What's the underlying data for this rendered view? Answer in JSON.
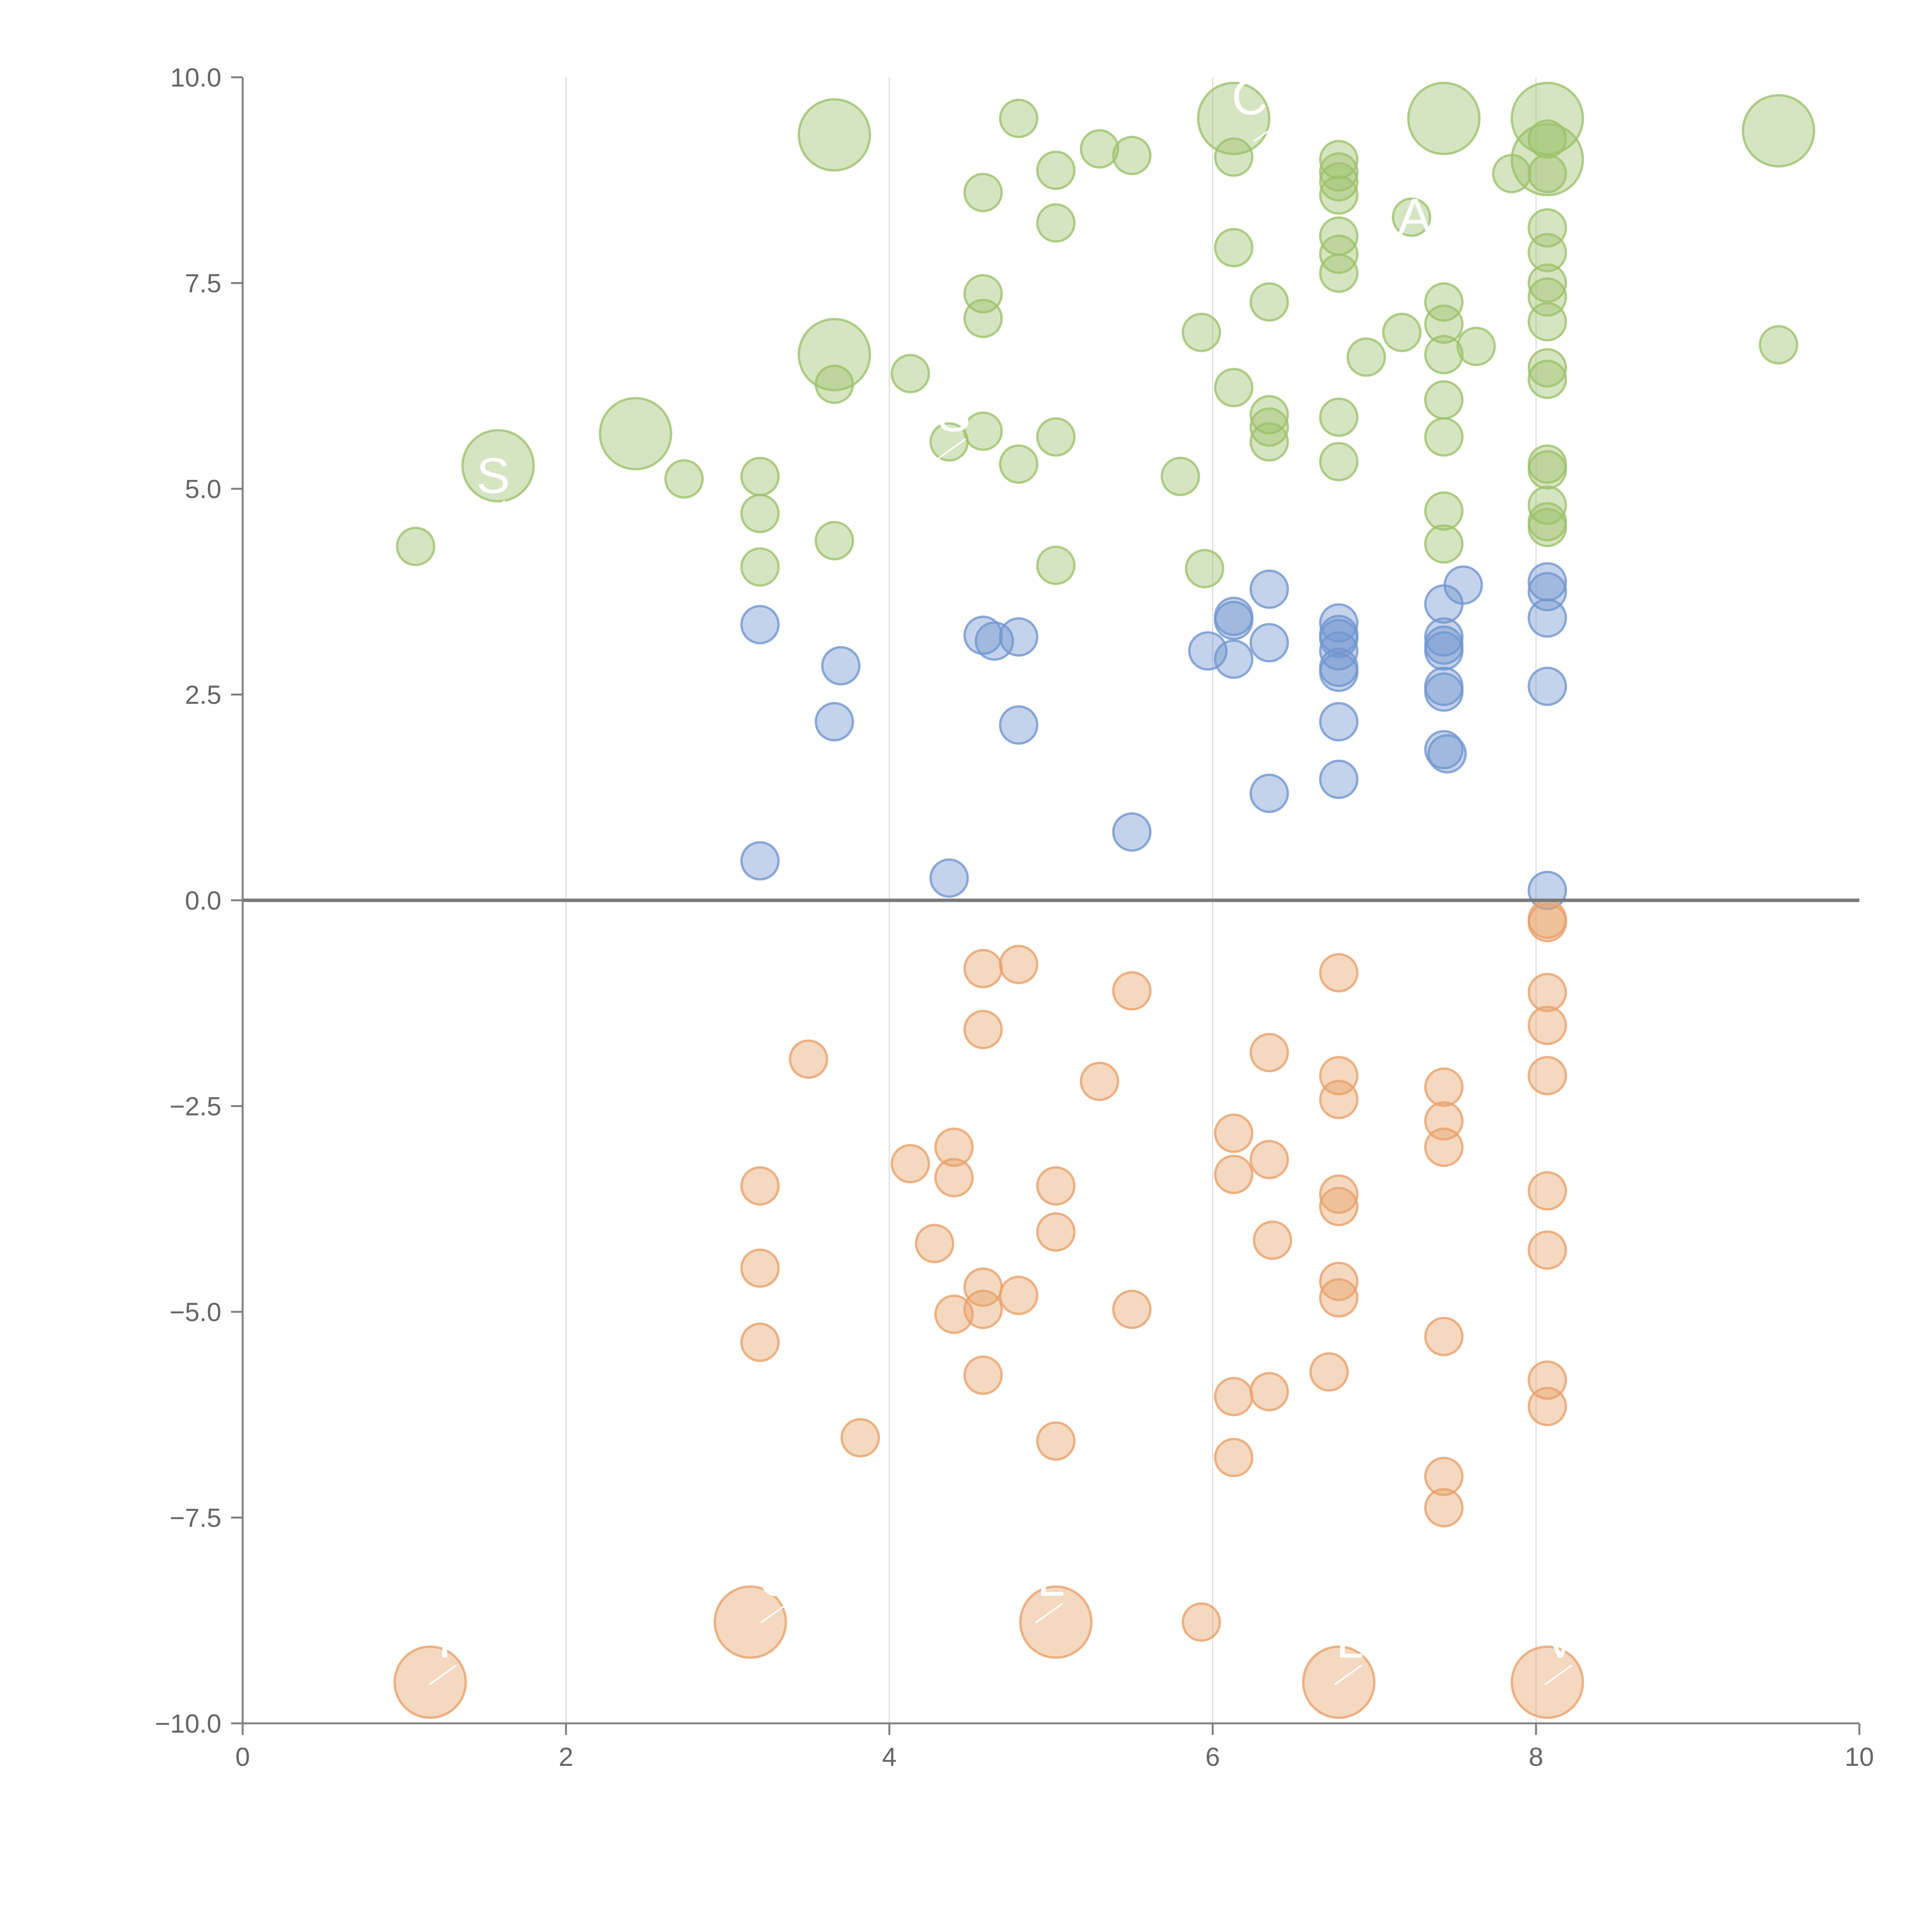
{
  "chart_data": {
    "type": "scatter",
    "title": "",
    "xlabel": "",
    "ylabel": "",
    "xlim": [
      0,
      10
    ],
    "ylim": [
      -10,
      10
    ],
    "x_ticks": [
      0,
      2,
      4,
      6,
      8,
      10
    ],
    "y_ticks": [
      -10,
      -7.5,
      -5,
      -2.5,
      0,
      2.5,
      5,
      7.5,
      10
    ],
    "x_tick_labels": [
      "0",
      "2",
      "4",
      "6",
      "8",
      "10"
    ],
    "y_tick_labels": [
      "−10.0",
      "−7.5",
      "−5.0",
      "−2.5",
      "0.0",
      "2.5",
      "5.0",
      "7.5",
      "10.0"
    ],
    "grid": "vertical lines at x ticks",
    "reference_line": {
      "y": 0
    },
    "colors": {
      "green": "#9dc26b",
      "blue": "#7296cf",
      "orange": "#e8a16a"
    },
    "series": [
      {
        "name": "green",
        "color": "#9dc26b",
        "points": [
          [
            1.07,
            4.3
          ],
          [
            2.73,
            5.12
          ],
          [
            3.2,
            5.15
          ],
          [
            3.2,
            4.7
          ],
          [
            3.2,
            4.05
          ],
          [
            3.66,
            4.37
          ],
          [
            3.66,
            6.27
          ],
          [
            4.13,
            6.4
          ],
          [
            4.37,
            5.57
          ],
          [
            4.58,
            7.37
          ],
          [
            4.58,
            7.07
          ],
          [
            4.58,
            8.6
          ],
          [
            4.58,
            5.7
          ],
          [
            4.8,
            5.3
          ],
          [
            4.8,
            9.5
          ],
          [
            5.03,
            8.87
          ],
          [
            5.03,
            8.23
          ],
          [
            5.03,
            5.63
          ],
          [
            5.03,
            4.07
          ],
          [
            5.3,
            9.13
          ],
          [
            5.5,
            9.05
          ],
          [
            5.8,
            5.15
          ],
          [
            5.93,
            6.9
          ],
          [
            5.95,
            4.03
          ],
          [
            6.13,
            9.03
          ],
          [
            6.13,
            7.93
          ],
          [
            6.13,
            6.23
          ],
          [
            6.35,
            7.27
          ],
          [
            6.35,
            5.9
          ],
          [
            6.35,
            5.75
          ],
          [
            6.35,
            5.57
          ],
          [
            6.78,
            9.0
          ],
          [
            6.78,
            8.85
          ],
          [
            6.78,
            8.73
          ],
          [
            6.78,
            8.57
          ],
          [
            6.78,
            8.07
          ],
          [
            6.78,
            7.85
          ],
          [
            6.78,
            7.62
          ],
          [
            6.78,
            5.87
          ],
          [
            6.78,
            5.33
          ],
          [
            6.95,
            6.6
          ],
          [
            7.17,
            6.9
          ],
          [
            7.23,
            8.3
          ],
          [
            7.43,
            7.27
          ],
          [
            7.43,
            7.0
          ],
          [
            7.43,
            6.63
          ],
          [
            7.43,
            6.08
          ],
          [
            7.43,
            5.63
          ],
          [
            7.43,
            4.73
          ],
          [
            7.43,
            4.33
          ],
          [
            7.63,
            6.73
          ],
          [
            7.85,
            8.83
          ],
          [
            8.07,
            9.25
          ],
          [
            8.07,
            8.83
          ],
          [
            8.07,
            8.17
          ],
          [
            8.07,
            7.87
          ],
          [
            8.07,
            7.5
          ],
          [
            8.07,
            7.33
          ],
          [
            8.07,
            7.03
          ],
          [
            8.07,
            6.47
          ],
          [
            8.07,
            6.33
          ],
          [
            8.07,
            5.3
          ],
          [
            8.07,
            5.23
          ],
          [
            8.07,
            4.8
          ],
          [
            8.07,
            4.6
          ],
          [
            8.07,
            4.53
          ],
          [
            9.5,
            6.75
          ]
        ]
      },
      {
        "name": "green-large",
        "color": "#9dc26b",
        "points": [
          [
            1.58,
            5.28
          ],
          [
            2.43,
            5.67
          ],
          [
            3.66,
            9.3
          ],
          [
            3.66,
            6.63
          ],
          [
            6.13,
            9.5
          ],
          [
            7.43,
            9.5
          ],
          [
            8.07,
            9.5
          ],
          [
            8.07,
            9.0
          ],
          [
            9.5,
            9.35
          ]
        ]
      },
      {
        "name": "blue",
        "color": "#7296cf",
        "points": [
          [
            3.2,
            3.35
          ],
          [
            3.2,
            0.48
          ],
          [
            3.66,
            2.17
          ],
          [
            3.7,
            2.85
          ],
          [
            4.37,
            0.27
          ],
          [
            4.58,
            3.22
          ],
          [
            4.65,
            3.15
          ],
          [
            4.8,
            3.2
          ],
          [
            4.8,
            2.13
          ],
          [
            5.5,
            0.83
          ],
          [
            5.97,
            3.03
          ],
          [
            6.13,
            3.45
          ],
          [
            6.13,
            3.4
          ],
          [
            6.13,
            2.93
          ],
          [
            6.35,
            3.78
          ],
          [
            6.35,
            3.13
          ],
          [
            6.35,
            1.3
          ],
          [
            6.78,
            3.37
          ],
          [
            6.78,
            3.23
          ],
          [
            6.78,
            3.18
          ],
          [
            6.78,
            3.03
          ],
          [
            6.78,
            2.83
          ],
          [
            6.78,
            2.77
          ],
          [
            6.78,
            2.17
          ],
          [
            6.78,
            1.47
          ],
          [
            7.43,
            3.6
          ],
          [
            7.43,
            3.2
          ],
          [
            7.43,
            3.1
          ],
          [
            7.43,
            3.03
          ],
          [
            7.43,
            2.6
          ],
          [
            7.43,
            2.53
          ],
          [
            7.43,
            1.83
          ],
          [
            7.45,
            1.78
          ],
          [
            7.55,
            3.83
          ],
          [
            8.07,
            3.87
          ],
          [
            8.07,
            3.75
          ],
          [
            8.07,
            3.43
          ],
          [
            8.07,
            2.6
          ],
          [
            8.07,
            0.12
          ]
        ]
      },
      {
        "name": "orange",
        "color": "#e8a16a",
        "points": [
          [
            3.2,
            -3.47
          ],
          [
            3.2,
            -4.47
          ],
          [
            3.2,
            -5.37
          ],
          [
            3.5,
            -1.93
          ],
          [
            3.82,
            -6.53
          ],
          [
            4.13,
            -3.2
          ],
          [
            4.28,
            -4.17
          ],
          [
            4.4,
            -3.0
          ],
          [
            4.4,
            -3.37
          ],
          [
            4.4,
            -5.03
          ],
          [
            4.58,
            -0.83
          ],
          [
            4.58,
            -1.57
          ],
          [
            4.58,
            -4.7
          ],
          [
            4.58,
            -4.97
          ],
          [
            4.58,
            -5.77
          ],
          [
            4.8,
            -0.78
          ],
          [
            4.8,
            -4.8
          ],
          [
            5.03,
            -3.47
          ],
          [
            5.03,
            -4.03
          ],
          [
            5.03,
            -6.57
          ],
          [
            5.3,
            -2.2
          ],
          [
            5.5,
            -1.1
          ],
          [
            5.5,
            -4.97
          ],
          [
            5.93,
            -8.77
          ],
          [
            6.13,
            -2.83
          ],
          [
            6.13,
            -3.33
          ],
          [
            6.13,
            -6.03
          ],
          [
            6.13,
            -6.77
          ],
          [
            6.35,
            -1.85
          ],
          [
            6.35,
            -3.15
          ],
          [
            6.37,
            -4.13
          ],
          [
            6.35,
            -5.97
          ],
          [
            6.72,
            -5.73
          ],
          [
            6.78,
            -0.88
          ],
          [
            6.78,
            -2.13
          ],
          [
            6.78,
            -2.42
          ],
          [
            6.78,
            -3.57
          ],
          [
            6.78,
            -3.72
          ],
          [
            6.78,
            -4.63
          ],
          [
            6.78,
            -4.83
          ],
          [
            7.43,
            -2.27
          ],
          [
            7.43,
            -2.68
          ],
          [
            7.43,
            -3.0
          ],
          [
            7.43,
            -5.3
          ],
          [
            7.43,
            -7.0
          ],
          [
            7.43,
            -7.38
          ],
          [
            8.07,
            -0.23
          ],
          [
            8.07,
            -0.27
          ],
          [
            8.07,
            -1.12
          ],
          [
            8.07,
            -1.52
          ],
          [
            8.07,
            -2.13
          ],
          [
            8.07,
            -3.53
          ],
          [
            8.07,
            -4.25
          ],
          [
            8.07,
            -5.83
          ],
          [
            8.07,
            -6.15
          ]
        ]
      },
      {
        "name": "orange-large",
        "color": "#e8a16a",
        "points": [
          [
            1.16,
            -9.5
          ],
          [
            3.14,
            -8.77
          ],
          [
            5.03,
            -8.77
          ],
          [
            6.78,
            -9.5
          ],
          [
            8.07,
            -9.5
          ]
        ]
      }
    ],
    "annotations": [
      {
        "text": "CO",
        "x": 6.35,
        "y": 9.55
      },
      {
        "text": "A",
        "x": 7.25,
        "y": 8.1
      },
      {
        "text": "S",
        "x": 4.4,
        "y": 5.7
      },
      {
        "text": "S",
        "x": 1.55,
        "y": 4.95
      },
      {
        "text": "C",
        "x": 3.3,
        "y": -8.45
      },
      {
        "text": "L",
        "x": 5.0,
        "y": -8.45
      },
      {
        "text": "I",
        "x": 1.25,
        "y": -9.2
      },
      {
        "text": "L",
        "x": 6.85,
        "y": -9.2
      },
      {
        "text": "V",
        "x": 8.15,
        "y": -9.2
      }
    ]
  }
}
